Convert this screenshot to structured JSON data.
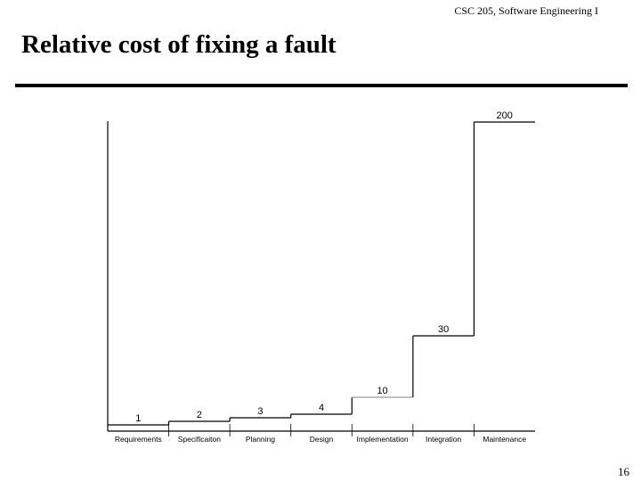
{
  "header": {
    "course": "CSC 205, Software Engineering I",
    "title": "Relative cost of fixing a fault"
  },
  "footer": {
    "page_number": "16"
  },
  "chart_data": {
    "type": "line",
    "style": "step",
    "title": "",
    "xlabel": "",
    "ylabel": "",
    "categories": [
      "Requirements",
      "Specificaiton",
      "Planning",
      "Design",
      "Implementation",
      "Integration",
      "Maintenance"
    ],
    "values": [
      1,
      2,
      3,
      4,
      10,
      30,
      200
    ],
    "value_labels": [
      "1",
      "2",
      "3",
      "4",
      "10",
      "30",
      "200"
    ],
    "ylim": [
      0,
      200
    ],
    "grid": false,
    "legend": "none",
    "line_color": "#000000",
    "step_segment_colors": [
      "#000000",
      "#000000",
      "#000000",
      "#000000",
      "#999999",
      "#000000",
      "#000000"
    ]
  }
}
